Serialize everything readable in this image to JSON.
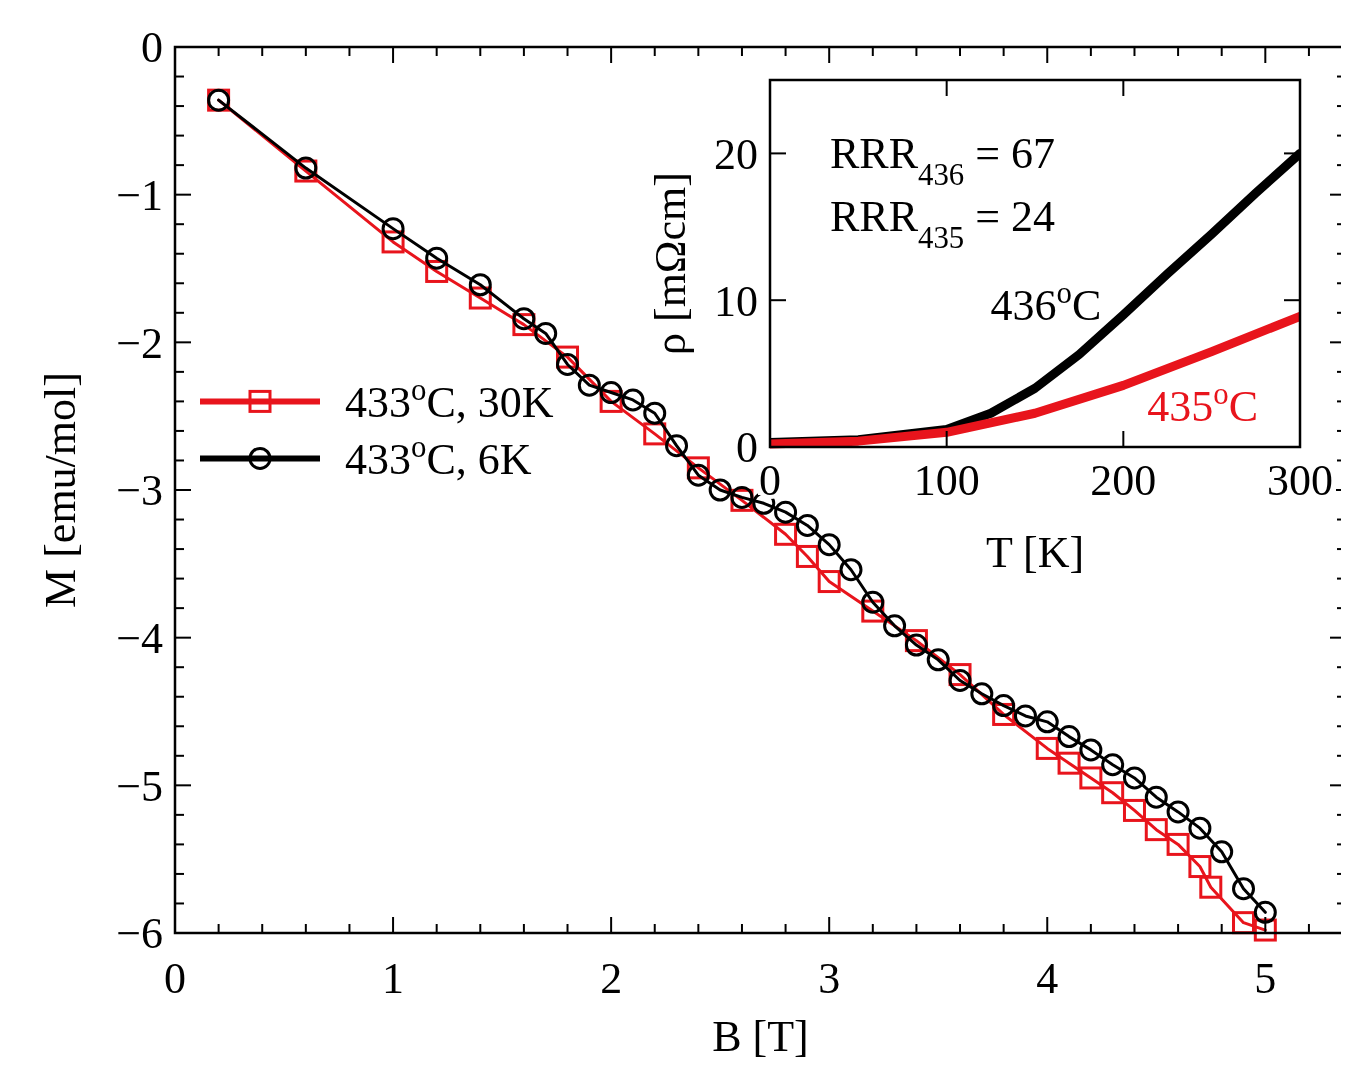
{
  "chart_data": [
    {
      "type": "line",
      "xlabel": "B [T]",
      "ylabel": "M [emu/mol]",
      "xlim": [
        0,
        5.37
      ],
      "ylim": [
        -6,
        0
      ],
      "xticks": [
        0,
        {
          "value": 0.2,
          "label": null
        },
        {
          "value": 0.4,
          "label": null
        },
        {
          "value": 0.6,
          "label": null
        },
        {
          "value": 0.8,
          "label": null
        },
        1,
        {
          "value": 1.2,
          "label": null
        },
        {
          "value": 1.4,
          "label": null
        },
        {
          "value": 1.6,
          "label": null
        },
        {
          "value": 1.8,
          "label": null
        },
        2,
        {
          "value": 2.2,
          "label": null
        },
        {
          "value": 2.4,
          "label": null
        },
        {
          "value": 2.6,
          "label": null
        },
        {
          "value": 2.8,
          "label": null
        },
        3,
        {
          "value": 3.2,
          "label": null
        },
        {
          "value": 3.4,
          "label": null
        },
        {
          "value": 3.6,
          "label": null
        },
        {
          "value": 3.8,
          "label": null
        },
        4,
        {
          "value": 4.2,
          "label": null
        },
        {
          "value": 4.4,
          "label": null
        },
        {
          "value": 4.6,
          "label": null
        },
        {
          "value": 4.8,
          "label": null
        },
        5,
        {
          "value": 5.2,
          "label": null
        }
      ],
      "yticks": [
        {
          "value": -6,
          "label": "−6"
        },
        {
          "value": -5.8,
          "label": null
        },
        {
          "value": -5.6,
          "label": null
        },
        {
          "value": -5.4,
          "label": null
        },
        {
          "value": -5.2,
          "label": null
        },
        {
          "value": -5,
          "label": "−5"
        },
        {
          "value": -4.8,
          "label": null
        },
        {
          "value": -4.6,
          "label": null
        },
        {
          "value": -4.4,
          "label": null
        },
        {
          "value": -4.2,
          "label": null
        },
        {
          "value": -4,
          "label": "−4"
        },
        {
          "value": -3.8,
          "label": null
        },
        {
          "value": -3.6,
          "label": null
        },
        {
          "value": -3.4,
          "label": null
        },
        {
          "value": -3.2,
          "label": null
        },
        {
          "value": -3,
          "label": "−3"
        },
        {
          "value": -2.8,
          "label": null
        },
        {
          "value": -2.6,
          "label": null
        },
        {
          "value": -2.4,
          "label": null
        },
        {
          "value": -2.2,
          "label": null
        },
        {
          "value": -2,
          "label": "−2"
        },
        {
          "value": -1.8,
          "label": null
        },
        {
          "value": -1.6,
          "label": null
        },
        {
          "value": -1.4,
          "label": null
        },
        {
          "value": -1.2,
          "label": null
        },
        {
          "value": -1,
          "label": "−1"
        },
        {
          "value": -0.8,
          "label": null
        },
        {
          "value": -0.6,
          "label": null
        },
        {
          "value": -0.4,
          "label": null
        },
        {
          "value": -0.2,
          "label": null
        },
        0
      ],
      "legend": "left",
      "series": [
        {
          "name": "433$^{o}$C, 30K",
          "color": "#e8141c",
          "marker": "square",
          "x": [
            0.2,
            0.6,
            1.0,
            1.2,
            1.4,
            1.6,
            1.8,
            2.0,
            2.2,
            2.4,
            2.6,
            2.8,
            2.9,
            3.0,
            3.2,
            3.4,
            3.6,
            3.8,
            4.0,
            4.1,
            4.2,
            4.3,
            4.4,
            4.5,
            4.6,
            4.7,
            4.75,
            4.9,
            5.0
          ],
          "values": [
            -0.36,
            -0.84,
            -1.32,
            -1.52,
            -1.7,
            -1.88,
            -2.1,
            -2.4,
            -2.62,
            -2.85,
            -3.07,
            -3.3,
            -3.45,
            -3.62,
            -3.82,
            -4.02,
            -4.25,
            -4.52,
            -4.75,
            -4.85,
            -4.95,
            -5.05,
            -5.17,
            -5.3,
            -5.4,
            -5.55,
            -5.69,
            -5.93,
            -5.98
          ]
        },
        {
          "name": "433$^{o}$C, 6K",
          "color": "#000000",
          "marker": "circle",
          "x": [
            0.2,
            0.6,
            1.0,
            1.2,
            1.4,
            1.6,
            1.7,
            1.8,
            1.9,
            2.0,
            2.1,
            2.2,
            2.3,
            2.4,
            2.5,
            2.6,
            2.7,
            2.8,
            2.9,
            3.0,
            3.1,
            3.2,
            3.3,
            3.4,
            3.5,
            3.6,
            3.7,
            3.8,
            3.9,
            4.0,
            4.1,
            4.2,
            4.3,
            4.4,
            4.5,
            4.6,
            4.7,
            4.8,
            4.9,
            5.0
          ],
          "values": [
            -0.36,
            -0.82,
            -1.23,
            -1.43,
            -1.61,
            -1.84,
            -1.94,
            -2.15,
            -2.29,
            -2.34,
            -2.39,
            -2.48,
            -2.7,
            -2.9,
            -3.0,
            -3.05,
            -3.09,
            -3.15,
            -3.24,
            -3.37,
            -3.54,
            -3.76,
            -3.92,
            -4.05,
            -4.15,
            -4.29,
            -4.38,
            -4.46,
            -4.53,
            -4.57,
            -4.67,
            -4.76,
            -4.86,
            -4.95,
            -5.08,
            -5.18,
            -5.29,
            -5.45,
            -5.7,
            -5.86
          ]
        }
      ]
    },
    {
      "type": "line",
      "xlabel": "T [K]",
      "ylabel": "ρ [mΩcm]",
      "xlim": [
        0,
        300
      ],
      "ylim": [
        0,
        25
      ],
      "xticks": [
        0,
        100,
        200,
        300
      ],
      "yticks": [
        0,
        10,
        20
      ],
      "annotations": [
        "RRR$_{436}$ = 67",
        "RRR$_{435}$ = 24"
      ],
      "series": [
        {
          "name": "436$^{o}$C",
          "color": "#000000",
          "x": [
            0,
            50,
            100,
            125,
            150,
            175,
            200,
            225,
            250,
            275,
            300
          ],
          "values": [
            0.3,
            0.5,
            1.2,
            2.3,
            4.0,
            6.3,
            9.0,
            11.8,
            14.5,
            17.3,
            20.0
          ]
        },
        {
          "name": "435$^{o}$C",
          "color": "#e8141c",
          "x": [
            0,
            50,
            100,
            150,
            200,
            250,
            300
          ],
          "values": [
            0.2,
            0.4,
            1.0,
            2.3,
            4.2,
            6.5,
            8.9
          ]
        }
      ]
    }
  ]
}
